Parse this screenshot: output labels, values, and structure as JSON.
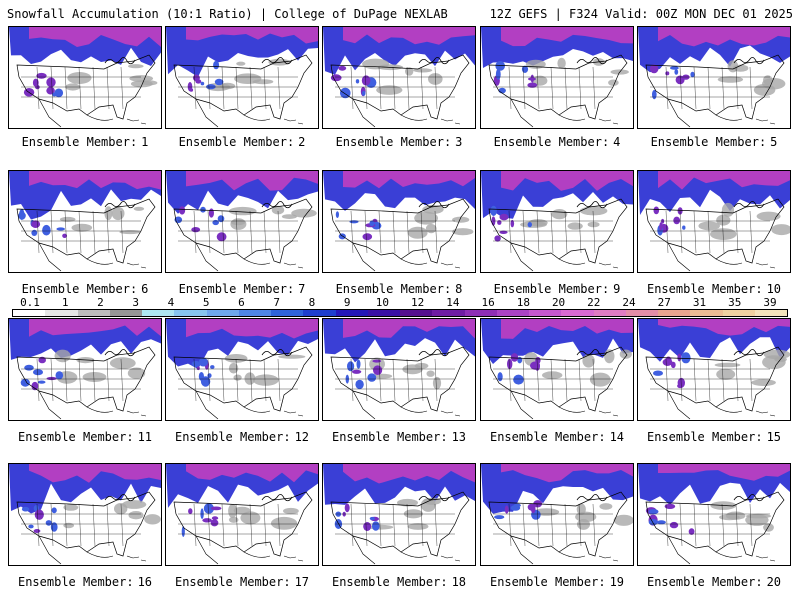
{
  "header": {
    "title": "Snowfall Accumulation (10:1 Ratio) | College of DuPage NEXLAB",
    "run_info": "12Z GEFS | F324 Valid: 00Z MON DEC 01 2025"
  },
  "member_label": "Ensemble Member:",
  "members": [
    1,
    2,
    3,
    4,
    5,
    6,
    7,
    8,
    9,
    10,
    11,
    12,
    13,
    14,
    15,
    16,
    17,
    18,
    19,
    20
  ],
  "colorbar": {
    "labels": [
      "0.1",
      "1",
      "2",
      "3",
      "4",
      "5",
      "6",
      "7",
      "8",
      "9",
      "10",
      "12",
      "14",
      "16",
      "18",
      "20",
      "22",
      "24",
      "27",
      "31",
      "35",
      "39"
    ],
    "colors": [
      "#ffffff",
      "#e6e6e6",
      "#bdbdbd",
      "#969696",
      "#aee6f0",
      "#88c6ee",
      "#6fa8ec",
      "#4f86e6",
      "#2e63da",
      "#1e3fce",
      "#2417b8",
      "#3a10a6",
      "#55108f",
      "#6f1da3",
      "#8e2fb5",
      "#aa44c4",
      "#c458cf",
      "#d86ad3",
      "#e07cc3",
      "#e48ea8",
      "#e8a58f",
      "#ecbd93",
      "#efd1a0",
      "#f3e3bb"
    ]
  },
  "map_icons": [
    "north-america-map-icon",
    "snowfall-shading-icon",
    "state-borders-icon"
  ]
}
